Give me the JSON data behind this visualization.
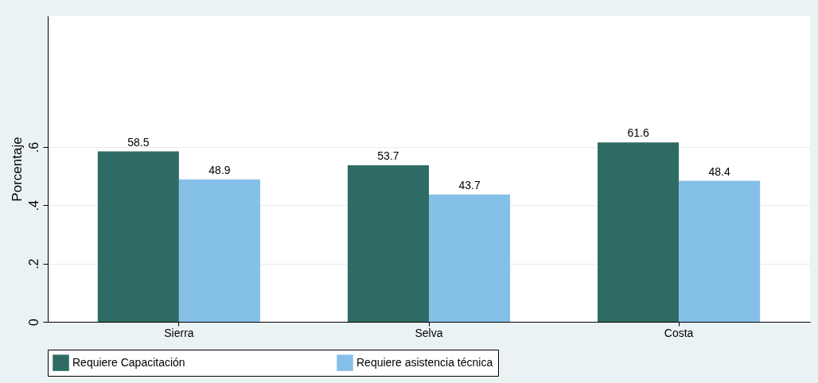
{
  "chart_data": {
    "type": "bar",
    "ylabel": "Porcentaje",
    "categories": [
      "Sierra",
      "Selva",
      "Costa"
    ],
    "series": [
      {
        "name": "Requiere Capacitación",
        "color": "#2e6b64",
        "values": [
          0.585,
          0.537,
          0.616
        ]
      },
      {
        "name": "Requiere asistencia técnica",
        "color": "#85c0e9",
        "values": [
          0.489,
          0.437,
          0.484
        ]
      }
    ],
    "annotations": [
      {
        "text": "58.5",
        "x": "Sierra",
        "y": 0.585
      },
      {
        "text": "48.9",
        "x": "Sierra",
        "y": 0.489
      },
      {
        "text": "53.7",
        "x": "Selva",
        "y": 0.537
      },
      {
        "text": "43.7",
        "x": "Selva",
        "y": 0.437
      },
      {
        "text": "61.6",
        "x": "Costa",
        "y": 0.616
      },
      {
        "text": "48.4",
        "x": "Costa",
        "y": 0.484
      }
    ],
    "ylim": [
      0,
      1.05
    ],
    "yticks": [
      0,
      {
        "value": 0.2,
        "label": ".2"
      },
      {
        "value": 0.4,
        "label": ".4"
      },
      {
        "value": 0.6,
        "label": ".6"
      }
    ],
    "grid": "y",
    "legend": "bottom"
  }
}
